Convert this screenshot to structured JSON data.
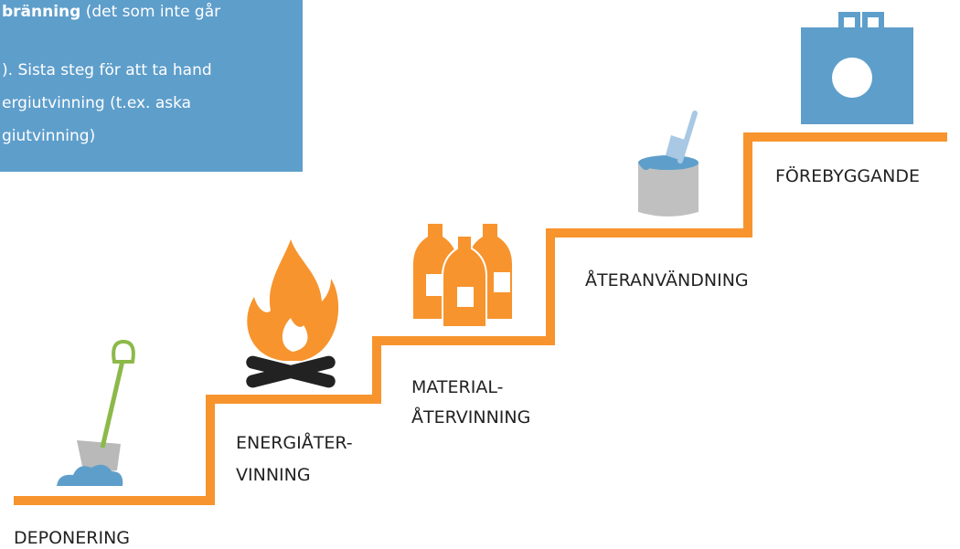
{
  "info_box": {
    "line_1_bold": "bränning",
    "line_1_rest": "(det som inte går",
    "line_2": "). Sista steg för att ta hand",
    "line_3": "ergiutvinning (t.ex. aska",
    "line_4": "giutvinning)"
  },
  "steps": [
    {
      "lines": [
        "DEPONERING"
      ]
    },
    {
      "lines": [
        "ENERGIÅTER-",
        "VINNING"
      ]
    },
    {
      "lines": [
        "MATERIAL-",
        "ÅTERVINNING"
      ]
    },
    {
      "lines": [
        "ÅTERANVÄNDNING"
      ]
    },
    {
      "lines": [
        "FÖREBYGGANDE"
      ]
    }
  ]
}
